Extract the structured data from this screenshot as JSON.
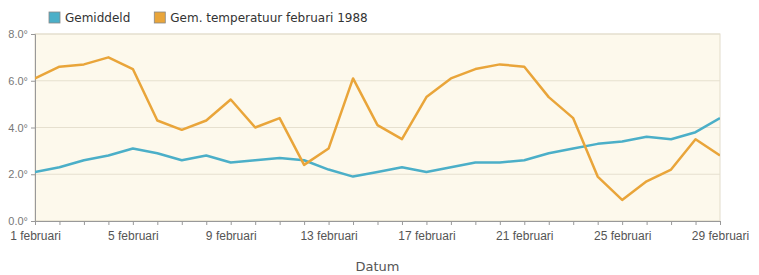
{
  "chart_data": {
    "type": "line",
    "x_label": "Datum",
    "categories": [
      "1 februari",
      null,
      null,
      null,
      "5 februari",
      null,
      null,
      null,
      "9 februari",
      null,
      null,
      null,
      "13 februari",
      null,
      null,
      null,
      "17 februari",
      null,
      null,
      null,
      "21 februari",
      null,
      null,
      null,
      "25 februari",
      null,
      null,
      null,
      "29 februari"
    ],
    "series": [
      {
        "name": "Gemiddeld",
        "color": "#4bafc8",
        "values": [
          2.1,
          2.3,
          2.6,
          2.8,
          3.1,
          2.9,
          2.6,
          2.8,
          2.5,
          2.6,
          2.7,
          2.6,
          2.2,
          1.9,
          2.1,
          2.3,
          2.1,
          2.3,
          2.5,
          2.5,
          2.6,
          2.9,
          3.1,
          3.3,
          3.4,
          3.6,
          3.5,
          3.8,
          4.4
        ]
      },
      {
        "name": "Gem. temperatuur februari 1988",
        "color": "#e9a53a",
        "values": [
          6.1,
          6.6,
          6.7,
          7.0,
          6.5,
          4.3,
          3.9,
          4.3,
          5.2,
          4.0,
          4.4,
          2.4,
          3.1,
          6.1,
          4.1,
          3.5,
          5.3,
          6.1,
          6.5,
          6.7,
          6.6,
          5.3,
          4.4,
          1.9,
          0.9,
          1.7,
          2.2,
          3.5,
          2.8
        ]
      }
    ],
    "ylim": [
      0,
      8
    ],
    "yticks": [
      {
        "value": 0,
        "label": "0.0°"
      },
      {
        "value": 2,
        "label": "2.0°"
      },
      {
        "value": 4,
        "label": "4.0°"
      },
      {
        "value": 6,
        "label": "6.0°"
      },
      {
        "value": 8,
        "label": "8.0°"
      }
    ],
    "grid": true,
    "legend": "upper left"
  }
}
